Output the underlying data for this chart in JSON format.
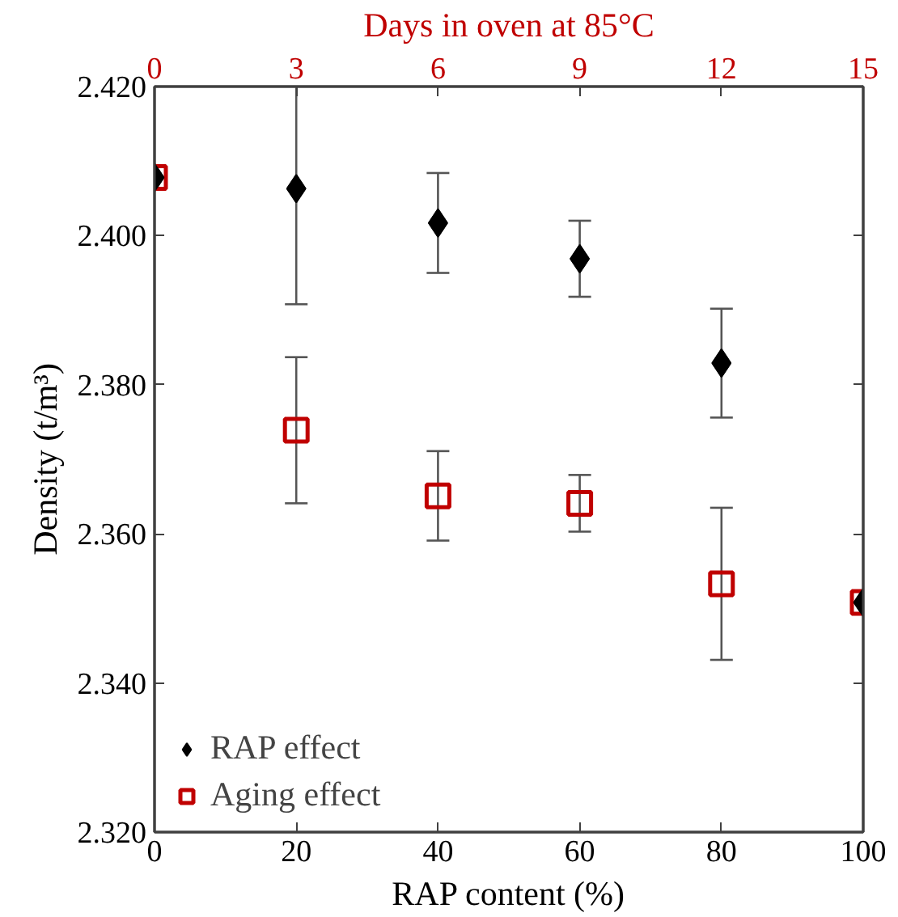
{
  "chart_data": {
    "type": "scatter",
    "xlabel": "RAP content (%)",
    "ylabel": "Density (t/m³)",
    "x2label": "Days in oven at 85°C",
    "x": [
      0,
      20,
      40,
      60,
      80,
      100
    ],
    "series": [
      {
        "name": "RAP effect",
        "color": "#000000",
        "marker": "diamond",
        "values": [
          2.4078,
          2.4063,
          2.4017,
          2.3969,
          2.3829,
          2.3508
        ],
        "errors": [
          null,
          [
            2.3908,
            2.42
          ],
          0.0067,
          0.0051,
          0.0073,
          null
        ]
      },
      {
        "name": "Aging effect",
        "color": "#c00000",
        "marker": "square",
        "values": [
          2.4078,
          2.3739,
          2.3651,
          2.3641,
          2.3533,
          2.3508
        ],
        "errors": [
          null,
          0.0098,
          0.006,
          0.0038,
          0.0102,
          null
        ]
      }
    ],
    "xlim": [
      0,
      100
    ],
    "xticks": [
      0,
      20,
      40,
      60,
      80,
      100
    ],
    "x2lim": [
      0,
      15
    ],
    "x2ticks": [
      0,
      3,
      6,
      9,
      12,
      15
    ],
    "ylim": [
      2.32,
      2.42
    ],
    "yticks": [
      {
        "value": 2.32,
        "label": "2.320"
      },
      {
        "value": 2.34,
        "label": "2.340"
      },
      {
        "value": 2.36,
        "label": "2.360"
      },
      {
        "value": 2.38,
        "label": "2.380"
      },
      {
        "value": 2.4,
        "label": "2.400"
      },
      {
        "value": 2.42,
        "label": "2.420"
      }
    ],
    "grid": false,
    "legend": "bottom left"
  }
}
